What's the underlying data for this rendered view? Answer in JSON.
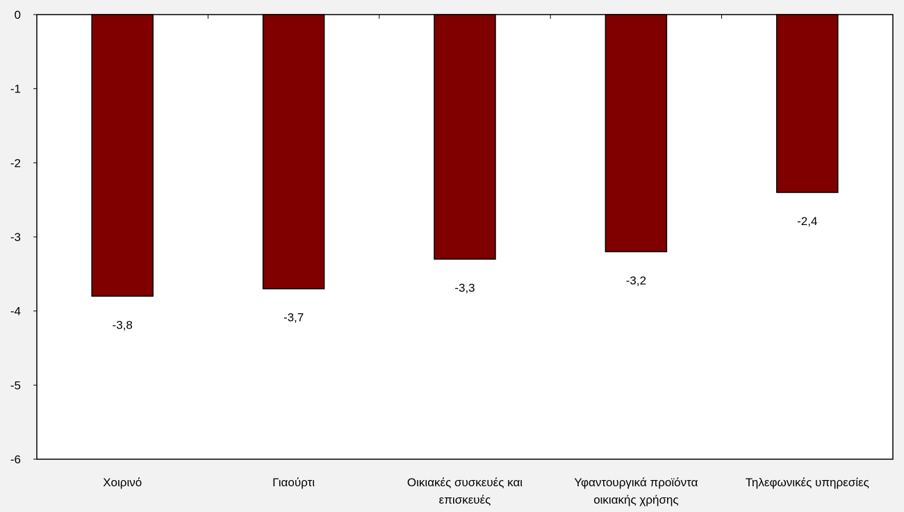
{
  "chart_data": {
    "type": "bar",
    "categories": [
      [
        "Χοιρινό"
      ],
      [
        "Γιαούρτι"
      ],
      [
        "Οικιακές συσκευές και",
        "επισκευές"
      ],
      [
        "Υφαντουργικά προϊόντα",
        "οικιακής χρήσης"
      ],
      [
        "Τηλεφωνικές υπηρεσίες"
      ]
    ],
    "values": [
      -3.8,
      -3.7,
      -3.3,
      -3.2,
      -2.4
    ],
    "data_labels": [
      "-3,8",
      "-3,7",
      "-3,3",
      "-3,2",
      "-2,4"
    ],
    "yticks": [
      0,
      -1,
      -2,
      -3,
      -4,
      -5,
      -6
    ],
    "ytick_labels": [
      "0",
      "-1",
      "-2",
      "-3",
      "-4",
      "-5",
      "-6"
    ],
    "ylim": [
      -6,
      0
    ],
    "title": "",
    "xlabel": "",
    "ylabel": "",
    "grid": false,
    "legend": "none",
    "colors": {
      "bar_fill": "#800000",
      "bar_stroke": "#000000",
      "plot_background": "#ffffff",
      "page_background": "#f2f2f2",
      "axis": "#000000"
    }
  }
}
